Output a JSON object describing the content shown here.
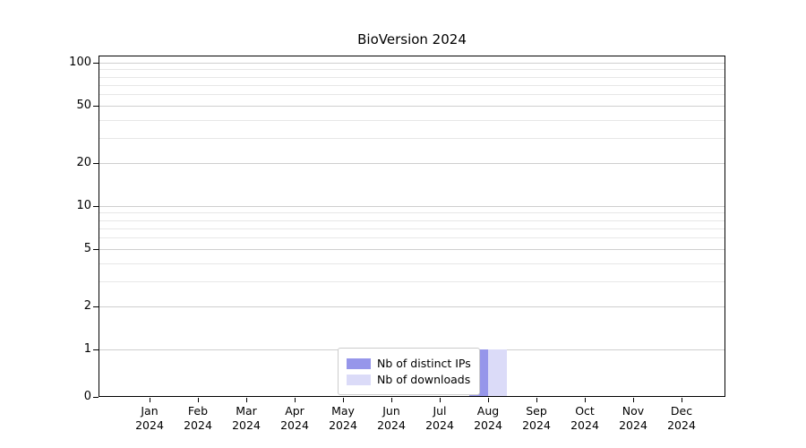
{
  "chart_data": {
    "type": "bar",
    "title": "BioVersion 2024",
    "x_tick_months": [
      "Jan",
      "Feb",
      "Mar",
      "Apr",
      "May",
      "Jun",
      "Jul",
      "Aug",
      "Sep",
      "Oct",
      "Nov",
      "Dec"
    ],
    "x_tick_year": "2024",
    "series": [
      {
        "name": "Nb of distinct IPs",
        "color": "#9696ea",
        "values": [
          0,
          0,
          0,
          0,
          0,
          0,
          0,
          1,
          0,
          0,
          0,
          0
        ]
      },
      {
        "name": "Nb of downloads",
        "color": "#dbdbf8",
        "values": [
          0,
          0,
          0,
          0,
          0,
          0,
          0,
          1,
          0,
          0,
          0,
          0
        ]
      }
    ],
    "yscale": "symlog",
    "y_ticks": [
      0,
      1,
      2,
      5,
      10,
      20,
      50,
      100
    ],
    "y_minor_ticks": [
      3,
      4,
      6,
      7,
      8,
      9,
      30,
      40,
      60,
      70,
      80,
      90
    ],
    "ylim": [
      0,
      110
    ],
    "grid": true,
    "legend_position": "lower center",
    "xlabel": "",
    "ylabel": ""
  },
  "colors": {
    "grid_major": "#cfcfcf",
    "grid_minor": "#e7e7e7",
    "axis": "#000000",
    "background": "#ffffff"
  }
}
